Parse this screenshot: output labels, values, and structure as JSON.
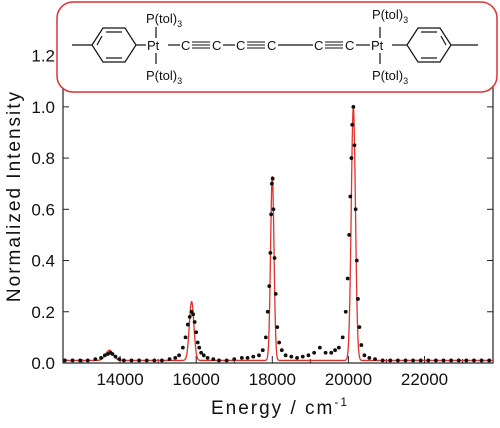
{
  "chart_data": {
    "type": "line",
    "title": "",
    "xlabel_main": "Energy / cm",
    "xlabel_sup": "-1",
    "ylabel": "Normalized Intensity",
    "xlim": [
      12500,
      23800
    ],
    "ylim": [
      0.0,
      1.3
    ],
    "x_ticks": [
      14000,
      16000,
      18000,
      20000,
      22000
    ],
    "y_ticks": [
      0.0,
      0.2,
      0.4,
      0.6,
      0.8,
      1.0,
      1.2
    ],
    "y_tick_labels": [
      "0.0",
      "0.2",
      "0.4",
      "0.6",
      "0.8",
      "1.0",
      "1.2"
    ],
    "grid": false,
    "series": [
      {
        "kind": "fit-line",
        "color": "#e0322d",
        "baseline": 0.01,
        "peaks": [
          {
            "center": 13720,
            "height": 0.04,
            "width": 100
          },
          {
            "center": 15880,
            "height": 0.23,
            "width": 60
          },
          {
            "center": 18000,
            "height": 0.72,
            "width": 45
          },
          {
            "center": 20130,
            "height": 0.99,
            "width": 55
          }
        ]
      },
      {
        "kind": "data-points",
        "color": "#111111",
        "points": [
          [
            12550,
            0.01
          ],
          [
            12750,
            0.01
          ],
          [
            12950,
            0.01
          ],
          [
            13150,
            0.01
          ],
          [
            13350,
            0.015
          ],
          [
            13500,
            0.02
          ],
          [
            13600,
            0.03
          ],
          [
            13680,
            0.035
          ],
          [
            13740,
            0.04
          ],
          [
            13800,
            0.035
          ],
          [
            13880,
            0.025
          ],
          [
            13980,
            0.015
          ],
          [
            14100,
            0.01
          ],
          [
            14300,
            0.01
          ],
          [
            14500,
            0.01
          ],
          [
            14700,
            0.01
          ],
          [
            14900,
            0.01
          ],
          [
            15100,
            0.01
          ],
          [
            15300,
            0.015
          ],
          [
            15450,
            0.02
          ],
          [
            15550,
            0.03
          ],
          [
            15650,
            0.06
          ],
          [
            15720,
            0.1
          ],
          [
            15780,
            0.15
          ],
          [
            15830,
            0.18
          ],
          [
            15880,
            0.2
          ],
          [
            15920,
            0.19
          ],
          [
            15960,
            0.16
          ],
          [
            16000,
            0.12
          ],
          [
            16040,
            0.08
          ],
          [
            16080,
            0.06
          ],
          [
            16130,
            0.04
          ],
          [
            16200,
            0.03
          ],
          [
            16300,
            0.02
          ],
          [
            16450,
            0.015
          ],
          [
            16600,
            0.01
          ],
          [
            16800,
            0.01
          ],
          [
            17000,
            0.015
          ],
          [
            17200,
            0.02
          ],
          [
            17350,
            0.02
          ],
          [
            17500,
            0.025
          ],
          [
            17650,
            0.03
          ],
          [
            17750,
            0.05
          ],
          [
            17830,
            0.1
          ],
          [
            17880,
            0.2
          ],
          [
            17920,
            0.3
          ],
          [
            17950,
            0.43
          ],
          [
            17970,
            0.58
          ],
          [
            17990,
            0.7
          ],
          [
            18010,
            0.72
          ],
          [
            18030,
            0.6
          ],
          [
            18060,
            0.41
          ],
          [
            18090,
            0.27
          ],
          [
            18130,
            0.14
          ],
          [
            18180,
            0.08
          ],
          [
            18250,
            0.05
          ],
          [
            18350,
            0.03
          ],
          [
            18500,
            0.025
          ],
          [
            18650,
            0.02
          ],
          [
            18800,
            0.025
          ],
          [
            18950,
            0.03
          ],
          [
            19100,
            0.04
          ],
          [
            19250,
            0.06
          ],
          [
            19400,
            0.04
          ],
          [
            19550,
            0.04
          ],
          [
            19650,
            0.05
          ],
          [
            19750,
            0.06
          ],
          [
            19850,
            0.1
          ],
          [
            19930,
            0.2
          ],
          [
            19980,
            0.33
          ],
          [
            20020,
            0.5
          ],
          [
            20050,
            0.65
          ],
          [
            20080,
            0.8
          ],
          [
            20100,
            0.93
          ],
          [
            20130,
            1.0
          ],
          [
            20160,
            0.85
          ],
          [
            20190,
            0.6
          ],
          [
            20220,
            0.4
          ],
          [
            20250,
            0.25
          ],
          [
            20290,
            0.14
          ],
          [
            20340,
            0.07
          ],
          [
            20420,
            0.03
          ],
          [
            20550,
            0.02
          ],
          [
            20700,
            0.015
          ],
          [
            20900,
            0.01
          ],
          [
            21100,
            0.01
          ],
          [
            21300,
            0.01
          ],
          [
            21500,
            0.01
          ],
          [
            21700,
            0.01
          ],
          [
            21900,
            0.01
          ],
          [
            22100,
            0.01
          ],
          [
            22300,
            0.01
          ],
          [
            22500,
            0.01
          ],
          [
            22700,
            0.01
          ],
          [
            22900,
            0.01
          ],
          [
            23100,
            0.01
          ],
          [
            23300,
            0.01
          ],
          [
            23500,
            0.01
          ],
          [
            23700,
            0.01
          ]
        ]
      }
    ]
  },
  "structure": {
    "ligand_top_left": "P(tol)",
    "ligand_bottom_left": "P(tol)",
    "ligand_top_right": "P(tol)",
    "ligand_bottom_right": "P(tol)",
    "subscript": "3",
    "metal_left": "Pt",
    "metal_right": "Pt",
    "carbon_labels": [
      "C",
      "C",
      "C",
      "C",
      "C",
      "C"
    ]
  }
}
